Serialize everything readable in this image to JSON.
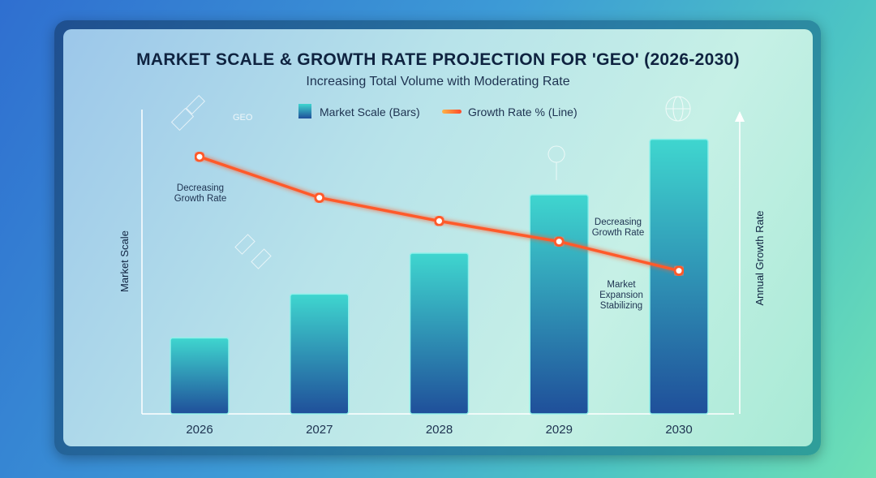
{
  "chart_data": {
    "type": "bar",
    "title": "MARKET SCALE & GROWTH RATE PROJECTION FOR 'GEO' (2026-2030)",
    "subtitle": "Increasing Total Volume with Moderating Rate",
    "categories": [
      "2026",
      "2027",
      "2028",
      "2029",
      "2030"
    ],
    "series": [
      {
        "name": "Market Scale (Bars)",
        "type": "bar",
        "values": [
          26,
          41,
          55,
          75,
          94
        ]
      },
      {
        "name": "Growth Rate % (Line)",
        "type": "line",
        "values": [
          88,
          74,
          66,
          59,
          49
        ]
      }
    ],
    "ylabel": "Market Scale",
    "y2label": "Annual Growth Rate",
    "ylim": [
      0,
      100
    ],
    "grid": false,
    "legend": "top",
    "annotations": [
      {
        "text": "Decreasing\nGrowth Rate",
        "near": "2026"
      },
      {
        "text": "Decreasing\nGrowth Rate",
        "near": "2029"
      },
      {
        "text": "Market\nExpansion\nStabilizing",
        "near": "2029"
      }
    ],
    "colors": {
      "bar_top": "#3fd6cf",
      "bar_bottom": "#1f4f9a",
      "line": "#ff5a2a"
    }
  },
  "decor": {
    "geo_tag": "GEO"
  }
}
